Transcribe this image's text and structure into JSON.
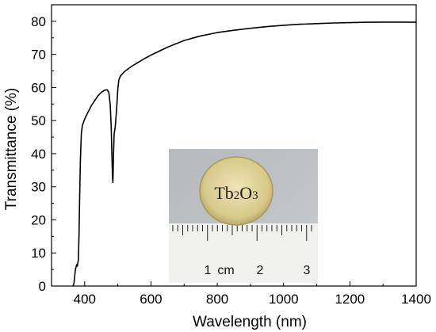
{
  "chart_data": {
    "type": "line",
    "title": "",
    "xlabel": "Wavelength (nm)",
    "ylabel": "Transmittance (%)",
    "xlim": [
      300,
      1400
    ],
    "ylim": [
      0,
      85
    ],
    "xticks": [
      400,
      600,
      800,
      1000,
      1200,
      1400
    ],
    "yticks": [
      0,
      10,
      20,
      30,
      40,
      50,
      60,
      70,
      80
    ],
    "grid": false,
    "series": [
      {
        "x": [
          365,
          368,
          372,
          376,
          378,
          381,
          383,
          385,
          387,
          390,
          393,
          400,
          410,
          420,
          430,
          440,
          450,
          460,
          468,
          473,
          477,
          480,
          482,
          484,
          485,
          486,
          487,
          489,
          492,
          496,
          500,
          503,
          508,
          520,
          540,
          560,
          580,
          600,
          650,
          700,
          750,
          800,
          850,
          900,
          950,
          1000,
          1050,
          1100,
          1150,
          1200,
          1250,
          1300,
          1350,
          1400
        ],
        "y": [
          0,
          1,
          5,
          6.5,
          6,
          8,
          16,
          27,
          38,
          46,
          48.5,
          50.5,
          52.5,
          54.5,
          56,
          57.5,
          58.5,
          59.2,
          59.3,
          58.5,
          55,
          48,
          40,
          33,
          31.3,
          35,
          40,
          46,
          48,
          53,
          59.5,
          62.3,
          63.5,
          64.8,
          66.3,
          67.5,
          68.7,
          69.8,
          72.2,
          74.2,
          75.6,
          76.6,
          77.3,
          77.9,
          78.4,
          78.8,
          79.1,
          79.3,
          79.5,
          79.6,
          79.7,
          79.75,
          79.75,
          79.7
        ]
      }
    ]
  },
  "inset": {
    "disk_label_main": "Tb",
    "disk_label_sub1": "2",
    "disk_label_mid": "O",
    "disk_label_sub2": "3",
    "ruler_labels": [
      "1",
      "cm",
      "2",
      "3"
    ]
  }
}
